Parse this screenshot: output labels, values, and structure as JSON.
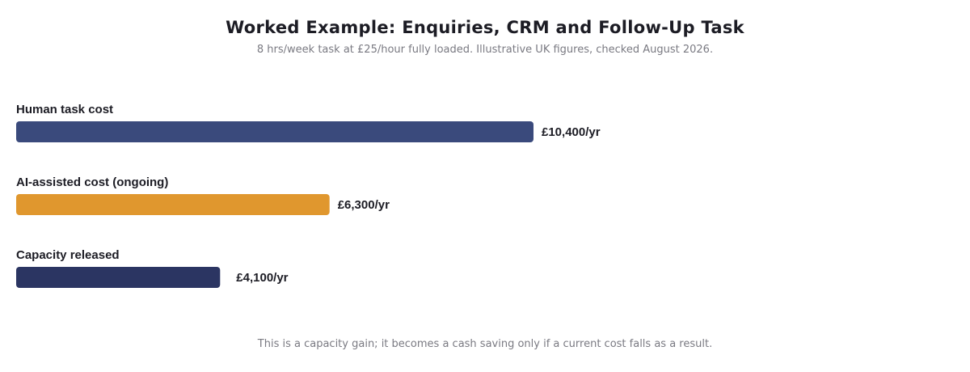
{
  "title": "Worked Example: Enquiries, CRM and Follow-Up Task",
  "subtitle": "8 hrs/week task at £25/hour fully loaded. Illustrative UK figures, checked August 2026.",
  "footnote": "This is a capacity gain; it becomes a cash saving only if a current cost falls as a result.",
  "colors": {
    "human": "#3a4a7c",
    "ai": "#e0972e",
    "capacity": "#2b3562"
  },
  "chart_data": {
    "type": "bar",
    "orientation": "horizontal",
    "categories": [
      "Human task cost",
      "AI-assisted cost (ongoing)",
      "Capacity released"
    ],
    "values": [
      10400,
      6300,
      4100
    ],
    "value_labels": [
      "£10,400/yr",
      "£6,300/yr",
      "£4,100/yr"
    ],
    "unit": "£/yr",
    "xlim": [
      0,
      10400
    ],
    "colors": [
      "#3a4a7c",
      "#e0972e",
      "#2b3562"
    ],
    "title": "Worked Example: Enquiries, CRM and Follow-Up Task",
    "subtitle": "8 hrs/week task at £25/hour fully loaded. Illustrative UK figures, checked August 2026.",
    "grid": false,
    "legend": "none"
  }
}
